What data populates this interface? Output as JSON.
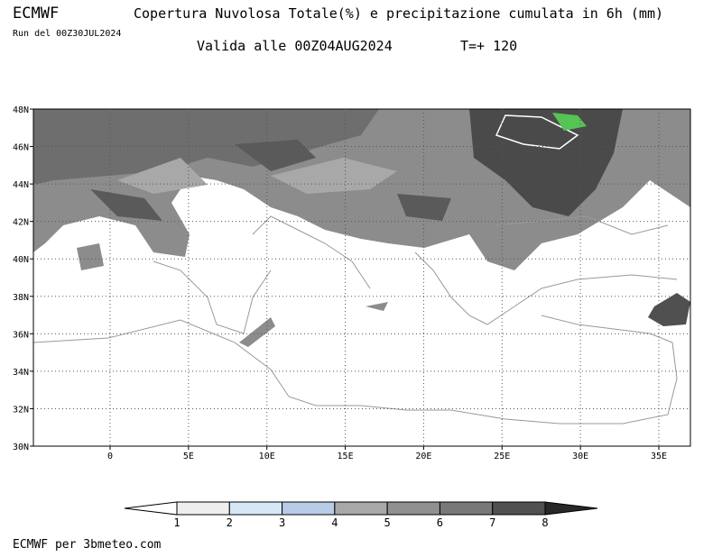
{
  "header": {
    "model": "ECMWF",
    "title": "Copertura Nuvolosa Totale(%) e precipitazione cumulata in 6h (mm)",
    "run": "Run del 00Z30JUL2024",
    "valid": "Valida alle 00Z04AUG2024",
    "step": "T=+ 120"
  },
  "map": {
    "lat_labels": [
      "48N",
      "46N",
      "44N",
      "42N",
      "40N",
      "38N",
      "36N",
      "34N",
      "32N",
      "30N"
    ],
    "lon_labels": [
      "0",
      "5E",
      "10E",
      "15E",
      "20E",
      "25E",
      "30E",
      "35E"
    ]
  },
  "colorbar": {
    "labels": [
      "1",
      "2",
      "3",
      "4",
      "5",
      "6",
      "7",
      "8"
    ]
  },
  "footer": "ECMWF per 3bmeteo.com"
}
